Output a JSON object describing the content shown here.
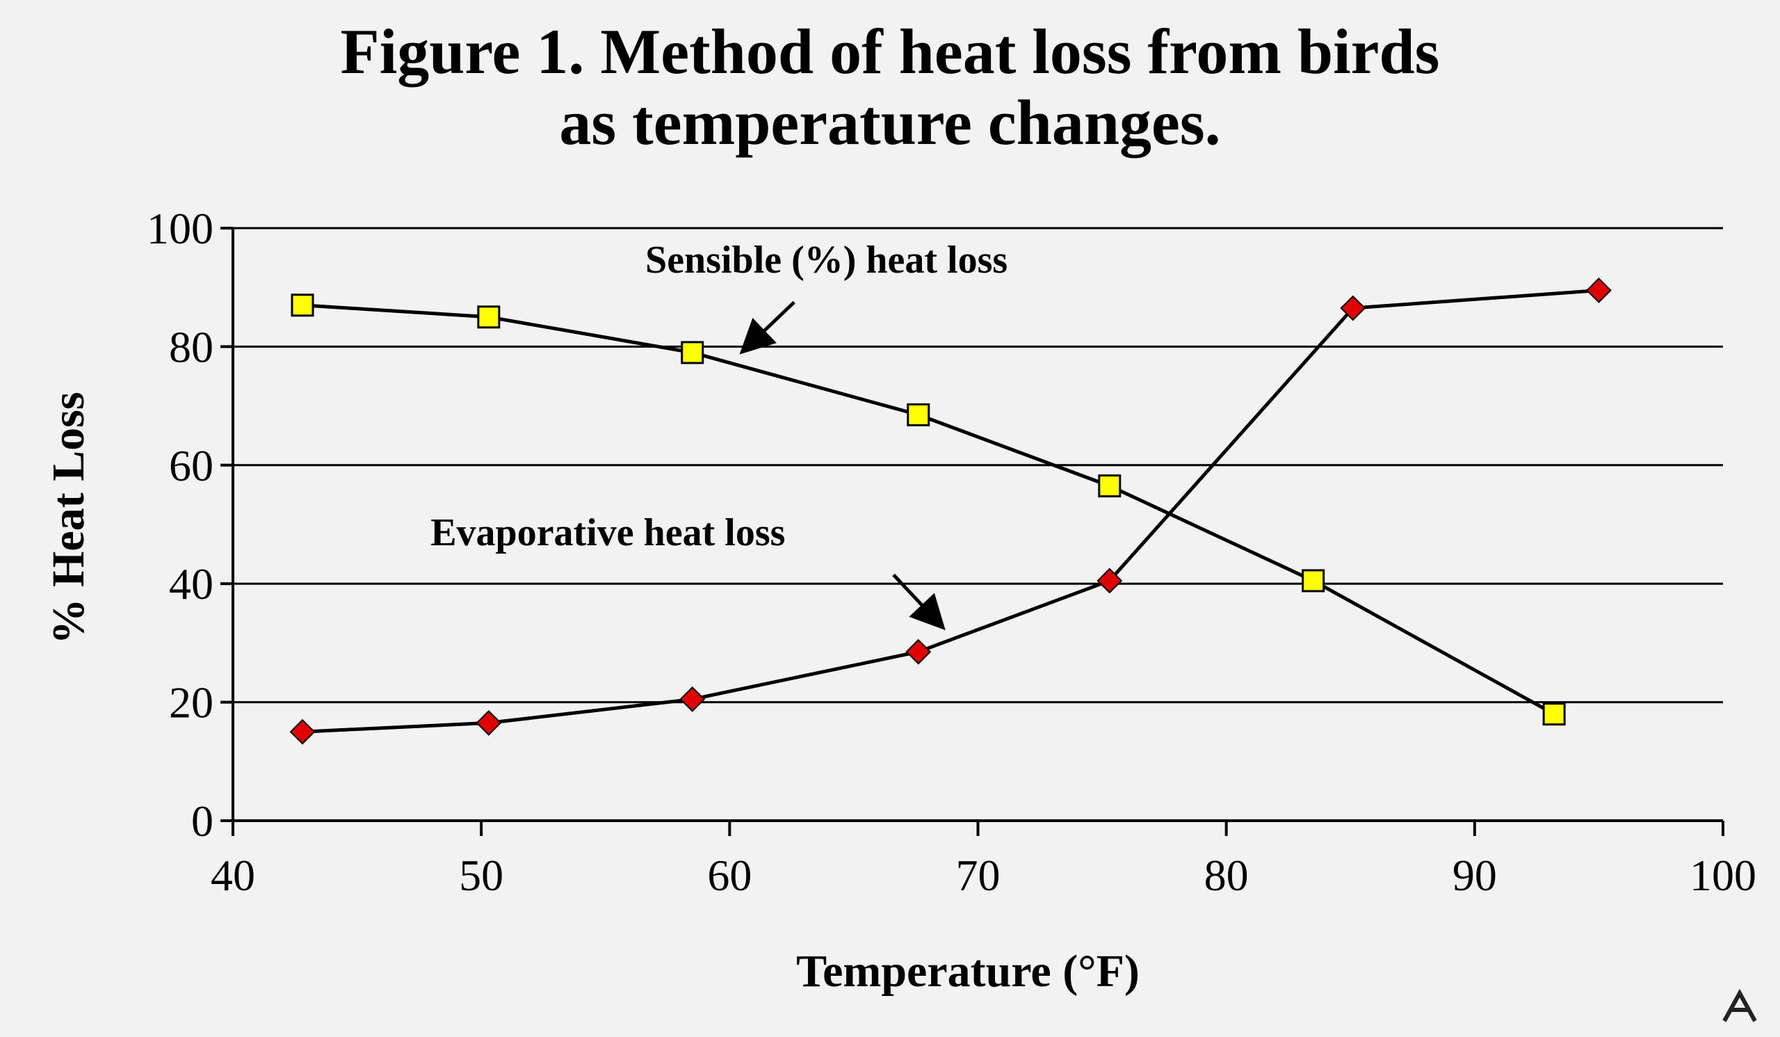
{
  "chart_data": {
    "type": "line",
    "title_lines": [
      "Figure 1. Method of heat loss from birds",
      "as temperature changes."
    ],
    "xlabel": "Temperature (°F)",
    "ylabel": "% Heat Loss",
    "xlim": [
      40,
      100
    ],
    "ylim": [
      0,
      100
    ],
    "xticks": [
      40,
      50,
      60,
      70,
      80,
      90,
      100
    ],
    "yticks": [
      0,
      20,
      40,
      60,
      80,
      100
    ],
    "grid": "horizontal",
    "legend": "none",
    "series": [
      {
        "key": "sensible",
        "color": "#ffff00",
        "marker": "square",
        "points": [
          [
            42.8,
            87
          ],
          [
            50.3,
            85
          ],
          [
            58.5,
            79
          ],
          [
            67.6,
            68.5
          ],
          [
            75.3,
            56.5
          ],
          [
            83.5,
            40.5
          ],
          [
            93.2,
            18
          ]
        ]
      },
      {
        "key": "evaporative",
        "color": "#e00000",
        "marker": "diamond",
        "points": [
          [
            42.8,
            15
          ],
          [
            50.3,
            16.5
          ],
          [
            58.5,
            20.5
          ],
          [
            67.6,
            28.5
          ],
          [
            75.3,
            40.5
          ],
          [
            85.1,
            86.5
          ],
          [
            95.0,
            89.5
          ]
        ]
      }
    ],
    "annotations": [
      {
        "text": "Sensible (%) heat loss",
        "x": 63.9,
        "y": 92.5,
        "arrow_from": [
          62.6,
          87.5
        ],
        "arrow_to": [
          60.6,
          79.5
        ]
      },
      {
        "text": "Evaporative heat loss",
        "x": 55.1,
        "y": 46.5,
        "arrow_from": [
          66.6,
          41.5
        ],
        "arrow_to": [
          68.5,
          33.0
        ]
      }
    ]
  }
}
